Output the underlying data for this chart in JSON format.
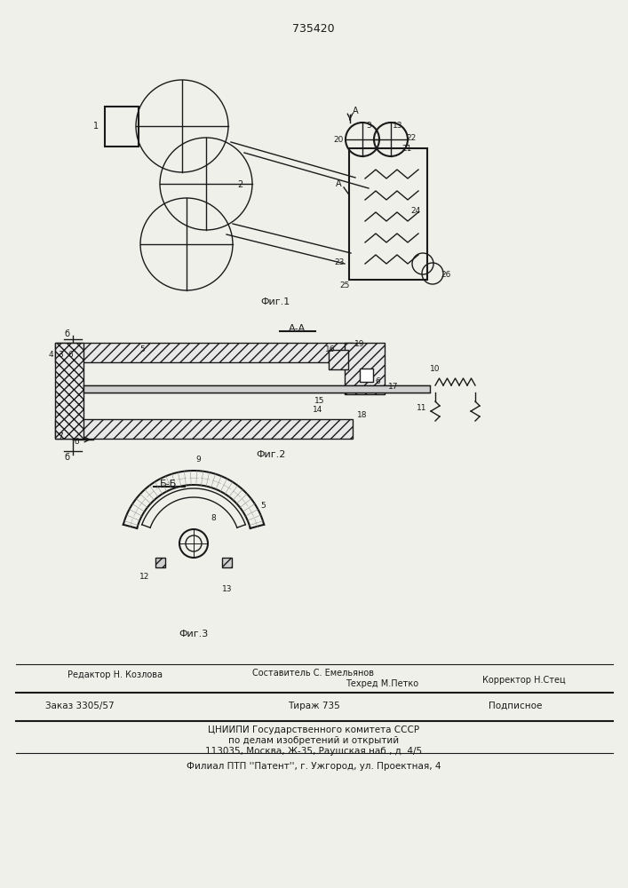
{
  "patent_number": "735420",
  "fig1_label": "Фиг.1",
  "fig2_label": "Фиг.2",
  "fig3_label": "Фиг.3",
  "section_aa": "А-А",
  "section_bb": "Б-Б",
  "bg_color": "#f0f0eb",
  "line_color": "#1a1a1a",
  "footer_editor": "Редактор Н. Козлова",
  "footer_composer": "Составитель С. Емельянов",
  "footer_tech": "Техред М.Петко",
  "footer_corrector": "Корректор Н.Стец",
  "footer_order": "Заказ 3305/57",
  "footer_copies": "Тираж 735",
  "footer_subscription": "Подписное",
  "footer_org1": "ЦНИИПИ Государственного комитета СССР",
  "footer_org2": "по делам изобретений и открытий",
  "footer_org3": "113035, Москва, Ж-35, Раушская наб., д. 4/5",
  "footer_branch": "Филиал ПТП ''Патент'', г. Ужгород, ул. Проектная, 4"
}
